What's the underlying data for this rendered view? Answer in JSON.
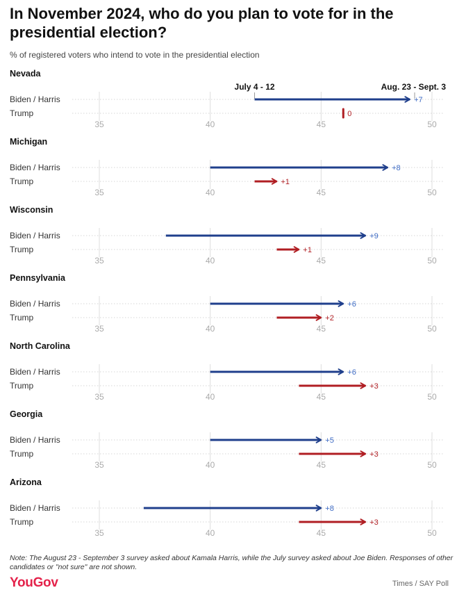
{
  "title": "In November 2024, who do you plan to vote for in the presidential election?",
  "subtitle": "% of registered voters who intend to vote in the presidential election",
  "note": "Note: The August 23 - September 3 survey asked about Kamala Harris, while the July survey asked about Joe Biden. Responses of other candidates or \"not sure\" are not shown.",
  "brand": "YouGov",
  "source": "Times / SAY Poll",
  "colors": {
    "biden_harris": "#1f3f8c",
    "trump": "#b01e23",
    "label_blue": "#3e6bc4",
    "label_red": "#b01e23",
    "grid": "#dddddd"
  },
  "chart_data": {
    "type": "dot-arrow",
    "x_ticks": [
      35,
      40,
      45,
      50
    ],
    "xlim": [
      35,
      50
    ],
    "period_labels": {
      "start": "July 4 - 12",
      "end": "Aug. 23 - Sept. 3"
    },
    "series_labels": [
      "Biden / Harris",
      "Trump"
    ],
    "states": [
      {
        "name": "Nevada",
        "rows": [
          {
            "candidate": "Biden / Harris",
            "from": 42,
            "to": 49,
            "change": "+7"
          },
          {
            "candidate": "Trump",
            "from": 46,
            "to": 46,
            "change": "0"
          }
        ]
      },
      {
        "name": "Michigan",
        "rows": [
          {
            "candidate": "Biden / Harris",
            "from": 40,
            "to": 48,
            "change": "+8"
          },
          {
            "candidate": "Trump",
            "from": 42,
            "to": 43,
            "change": "+1"
          }
        ]
      },
      {
        "name": "Wisconsin",
        "rows": [
          {
            "candidate": "Biden / Harris",
            "from": 38,
            "to": 47,
            "change": "+9"
          },
          {
            "candidate": "Trump",
            "from": 43,
            "to": 44,
            "change": "+1"
          }
        ]
      },
      {
        "name": "Pennsylvania",
        "rows": [
          {
            "candidate": "Biden / Harris",
            "from": 40,
            "to": 46,
            "change": "+6"
          },
          {
            "candidate": "Trump",
            "from": 43,
            "to": 45,
            "change": "+2"
          }
        ]
      },
      {
        "name": "North Carolina",
        "rows": [
          {
            "candidate": "Biden / Harris",
            "from": 40,
            "to": 46,
            "change": "+6"
          },
          {
            "candidate": "Trump",
            "from": 44,
            "to": 47,
            "change": "+3"
          }
        ]
      },
      {
        "name": "Georgia",
        "rows": [
          {
            "candidate": "Biden / Harris",
            "from": 40,
            "to": 45,
            "change": "+5"
          },
          {
            "candidate": "Trump",
            "from": 44,
            "to": 47,
            "change": "+3"
          }
        ]
      },
      {
        "name": "Arizona",
        "rows": [
          {
            "candidate": "Biden / Harris",
            "from": 37,
            "to": 45,
            "change": "+8"
          },
          {
            "candidate": "Trump",
            "from": 44,
            "to": 47,
            "change": "+3"
          }
        ]
      }
    ]
  }
}
